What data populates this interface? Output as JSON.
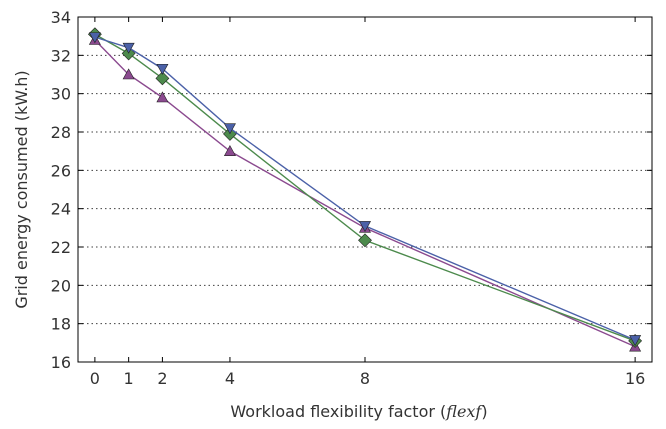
{
  "chart_data": {
    "type": "line",
    "title": "",
    "xlabel_prefix": "Workload flexibility factor (",
    "xlabel_math": "flexf",
    "xlabel_suffix": ")",
    "ylabel": "Grid energy consumed (kW.h)",
    "x": [
      0,
      1,
      2,
      4,
      8,
      16
    ],
    "xticks": [
      "0",
      "1",
      "2",
      "4",
      "8",
      "16"
    ],
    "xlim": [
      -0.5,
      16.5
    ],
    "yticks": [
      "16",
      "18",
      "20",
      "22",
      "24",
      "26",
      "28",
      "30",
      "32",
      "34"
    ],
    "ylim": [
      16,
      34
    ],
    "grid": "horizontal-dotted",
    "legend": "none",
    "series": [
      {
        "marker": "triangle",
        "color": "#8b4a8f",
        "values": [
          32.8,
          31.0,
          29.8,
          27.0,
          23.0,
          16.8
        ]
      },
      {
        "marker": "diamond",
        "color": "#4c8a4c",
        "values": [
          33.1,
          32.1,
          30.8,
          27.9,
          22.35,
          17.1
        ]
      },
      {
        "marker": "triangle-down",
        "color": "#4b61a8",
        "values": [
          32.95,
          32.4,
          31.3,
          28.2,
          23.1,
          17.15
        ]
      }
    ]
  }
}
